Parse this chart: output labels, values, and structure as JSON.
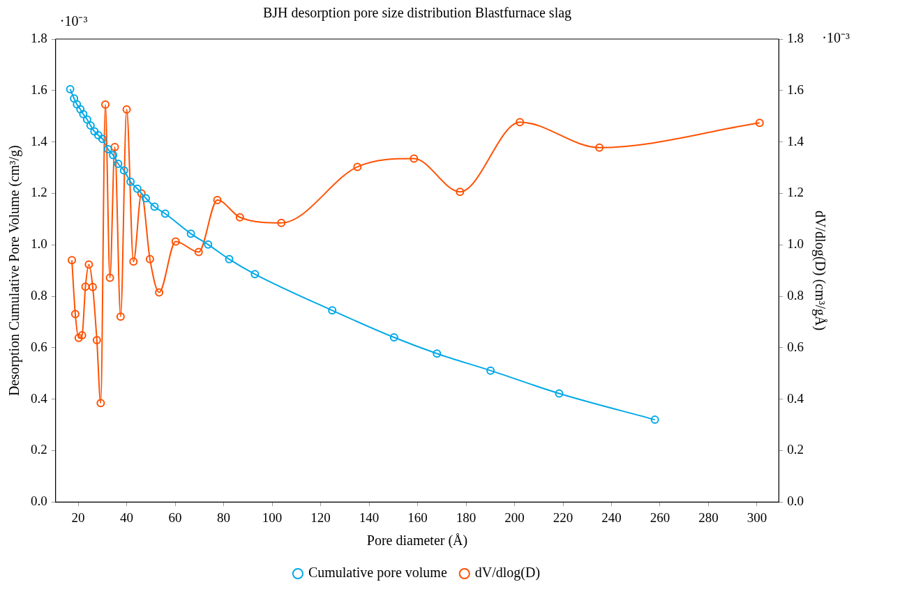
{
  "chart_data": {
    "type": "line",
    "title": "BJH desorption pore size distribution Blastfurnace slag",
    "xlabel": "Pore diameter (Å)",
    "ylabel": "Desorption Cumulative Pore Volume (cm³/g)",
    "y2label": "dV/dlog(D) (cm³/gÅ)",
    "annotations": [
      "·10⁻³",
      "·10⁻³"
    ],
    "xlim": [
      10.7,
      309
    ],
    "xticks": [
      20,
      40,
      60,
      80,
      100,
      120,
      140,
      160,
      180,
      200,
      220,
      240,
      260,
      280,
      300
    ],
    "ylim": [
      0,
      1.8
    ],
    "yticks": [
      {
        "value": 0,
        "label": "0.0"
      },
      {
        "value": 0.2,
        "label": "0.2"
      },
      {
        "value": 0.4,
        "label": "0.4"
      },
      {
        "value": 0.6,
        "label": "0.6"
      },
      {
        "value": 0.8,
        "label": "0.8"
      },
      {
        "value": 1,
        "label": "1.0"
      },
      {
        "value": 1.2,
        "label": "1.2"
      },
      {
        "value": 1.4,
        "label": "1.4"
      },
      {
        "value": 1.6,
        "label": "1.6"
      },
      {
        "value": 1.8,
        "label": "1.8"
      }
    ],
    "y2lim": [
      0,
      1.8
    ],
    "y2ticks": [
      {
        "value": 0,
        "label": "0.0"
      },
      {
        "value": 0.2,
        "label": "0.2"
      },
      {
        "value": 0.4,
        "label": "0.4"
      },
      {
        "value": 0.6,
        "label": "0.6"
      },
      {
        "value": 0.8,
        "label": "0.8"
      },
      {
        "value": 1,
        "label": "1.0"
      },
      {
        "value": 1.2,
        "label": "1.2"
      },
      {
        "value": 1.4,
        "label": "1.4"
      },
      {
        "value": 1.6,
        "label": "1.6"
      },
      {
        "value": 1.8,
        "label": "1.8"
      }
    ],
    "grid": false,
    "legend": "bottom",
    "marker": "circle",
    "line_style": "solid",
    "series": [
      {
        "name": "Cumulative pore volume",
        "color": "#00a8e8",
        "x": [
          16.7,
          18.3,
          19.5,
          20.9,
          22.1,
          23.7,
          25.1,
          26.7,
          28.3,
          30.0,
          32.3,
          34.4,
          36.5,
          38.9,
          41.6,
          44.4,
          47.9,
          51.5,
          55.9,
          66.5,
          73.6,
          82.3,
          92.9,
          124.8,
          150.3,
          168.0,
          190.1,
          218.4,
          257.9
        ],
        "values": [
          1.605,
          1.569,
          1.546,
          1.527,
          1.508,
          1.487,
          1.464,
          1.441,
          1.426,
          1.412,
          1.372,
          1.349,
          1.315,
          1.289,
          1.245,
          1.218,
          1.181,
          1.148,
          1.121,
          1.043,
          1.001,
          0.944,
          0.886,
          0.745,
          0.64,
          0.577,
          0.511,
          0.422,
          0.32
        ]
      },
      {
        "name": "dV/dlog(D)",
        "color": "#ff5100",
        "axis": "y2",
        "x": [
          17.4,
          18.8,
          20.2,
          21.6,
          23.0,
          24.4,
          26.0,
          27.7,
          29.3,
          31.2,
          33.1,
          35.1,
          37.5,
          40.0,
          42.8,
          46.1,
          49.6,
          53.4,
          60.2,
          69.7,
          77.4,
          86.7,
          103.8,
          135.2,
          158.5,
          177.5,
          202.2,
          235.0,
          301.1
        ],
        "values": [
          0.94,
          0.731,
          0.638,
          0.648,
          0.837,
          0.923,
          0.836,
          0.629,
          0.385,
          1.545,
          0.872,
          1.38,
          0.721,
          1.526,
          0.935,
          1.2,
          0.944,
          0.815,
          1.013,
          0.972,
          1.174,
          1.107,
          1.085,
          1.303,
          1.335,
          1.206,
          1.477,
          1.378,
          1.474
        ]
      }
    ]
  }
}
